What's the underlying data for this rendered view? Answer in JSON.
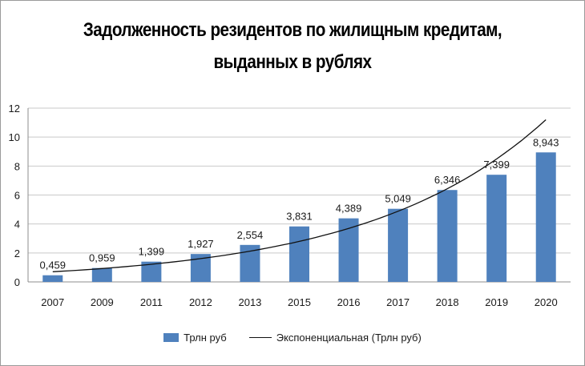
{
  "chart_data": {
    "type": "bar",
    "title_lines": [
      "Задолженность резидентов по жилищным кредитам,",
      "выданных в рублях"
    ],
    "categories": [
      "2007",
      "2009",
      "2011",
      "2012",
      "2013",
      "2015",
      "2016",
      "2017",
      "2018",
      "2019",
      "2020"
    ],
    "series": [
      {
        "name": "Трлн руб",
        "values": [
          0.459,
          0.959,
          1.399,
          1.927,
          2.554,
          3.831,
          4.389,
          5.049,
          6.346,
          7.399,
          8.943
        ],
        "data_labels": [
          "0,459",
          "0,959",
          "1,399",
          "1,927",
          "2,554",
          "3,831",
          "4,389",
          "5,049",
          "6,346",
          "7,399",
          "8,943"
        ],
        "color": "#4f81bd"
      }
    ],
    "trendline": {
      "name": "Экспоненциальная (Трлн руб)",
      "type": "exponential",
      "start_value": 0.7,
      "end_value": 11.2,
      "color": "#111111"
    },
    "ylim": [
      0,
      12
    ],
    "yticks": [
      0,
      2,
      4,
      6,
      8,
      10,
      12
    ],
    "grid": true,
    "legend_position": "bottom"
  }
}
